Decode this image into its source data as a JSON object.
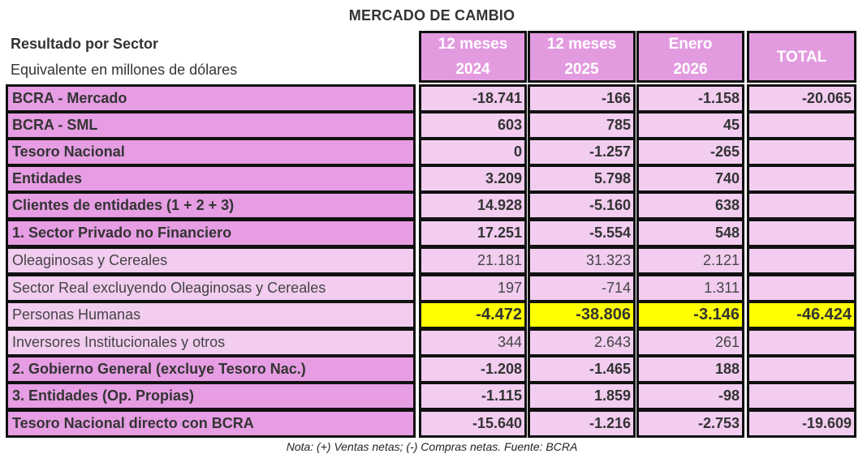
{
  "title": "MERCADO DE CAMBIO",
  "subtitle_bold": "Resultado por Sector",
  "subtitle_unit": "Equivalente en millones de dólares",
  "columns": [
    {
      "line1": "12 meses",
      "line2": "2024"
    },
    {
      "line1": "12 meses",
      "line2": "2025"
    },
    {
      "line1": "Enero",
      "line2": "2026"
    },
    {
      "line1": "TOTAL",
      "line2": ""
    }
  ],
  "rows": [
    {
      "label": "BCRA - Mercado",
      "values": [
        "-18.741",
        "-166",
        "-1.158",
        "-20.065"
      ]
    },
    {
      "label": "BCRA - SML",
      "values": [
        "603",
        "785",
        "45",
        ""
      ]
    },
    {
      "label": "Tesoro Nacional",
      "values": [
        "0",
        "-1.257",
        "-265",
        ""
      ]
    },
    {
      "label": "Entidades",
      "values": [
        "3.209",
        "5.798",
        "740",
        ""
      ]
    },
    {
      "label": "Clientes de entidades (1 + 2 + 3)",
      "values": [
        "14.928",
        "-5.160",
        "638",
        ""
      ]
    },
    {
      "label": "1. Sector Privado no Financiero",
      "values": [
        "17.251",
        "-5.554",
        "548",
        ""
      ]
    },
    {
      "label": "Oleaginosas y Cereales",
      "values": [
        "21.181",
        "31.323",
        "2.121",
        ""
      ]
    },
    {
      "label": "Sector Real excluyendo Oleaginosas y Cereales",
      "values": [
        "197",
        "-714",
        "1.311",
        ""
      ]
    },
    {
      "label": "Personas Humanas",
      "values": [
        "-4.472",
        "-38.806",
        "-3.146",
        "-46.424"
      ]
    },
    {
      "label": "Inversores Institucionales y otros",
      "values": [
        "344",
        "2.643",
        "261",
        ""
      ]
    },
    {
      "label": "2. Gobierno General (excluye Tesoro Nac.)",
      "values": [
        "-1.208",
        "-1.465",
        "188",
        ""
      ]
    },
    {
      "label": "3. Entidades (Op. Propias)",
      "values": [
        "-1.115",
        "1.859",
        "-98",
        ""
      ]
    },
    {
      "label": "Tesoro Nacional directo con BCRA",
      "values": [
        "-15.640",
        "-1.216",
        "-2.753",
        "-19.609"
      ]
    }
  ],
  "note": "Nota: (+) Ventas netas; (-) Compras netas. Fuente: BCRA",
  "colors": {
    "header": "#e39be0",
    "label_bold": "#e69de3",
    "cell": "#f2cdf0",
    "highlight": "#ffff00",
    "border": "#111111"
  }
}
